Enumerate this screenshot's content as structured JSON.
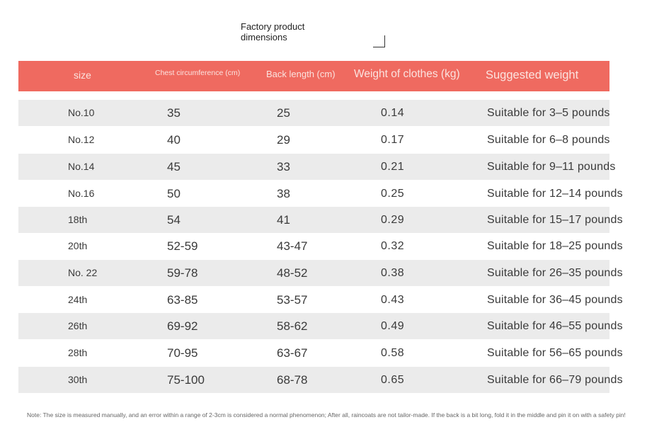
{
  "title": "Factory product dimensions",
  "colors": {
    "header_bg": "#ef6a60",
    "row_shade": "#ebebeb"
  },
  "header": {
    "size": "size",
    "chest": "Chest circumference (cm)",
    "back": "Back length (cm)",
    "weight": "Weight of clothes (kg)",
    "suggested": "Suggested weight"
  },
  "rows": [
    {
      "size": "No.10",
      "chest": "35",
      "back": "25",
      "weight": "0.14",
      "suggested": "Suitable for 3–5 pounds"
    },
    {
      "size": "No.12",
      "chest": "40",
      "back": "29",
      "weight": "0.17",
      "suggested": "Suitable for 6–8 pounds"
    },
    {
      "size": "No.14",
      "chest": "45",
      "back": "33",
      "weight": "0.21",
      "suggested": "Suitable for 9–11 pounds"
    },
    {
      "size": "No.16",
      "chest": "50",
      "back": "38",
      "weight": "0.25",
      "suggested": "Suitable for 12–14 pounds"
    },
    {
      "size": "18th",
      "chest": "54",
      "back": "41",
      "weight": "0.29",
      "suggested": "Suitable for 15–17 pounds"
    },
    {
      "size": "20th",
      "chest": "52-59",
      "back": "43-47",
      "weight": "0.32",
      "suggested": "Suitable for 18–25 pounds"
    },
    {
      "size": "No. 22",
      "chest": "59-78",
      "back": "48-52",
      "weight": "0.38",
      "suggested": "Suitable for 26–35 pounds"
    },
    {
      "size": "24th",
      "chest": "63-85",
      "back": "53-57",
      "weight": "0.43",
      "suggested": "Suitable for 36–45 pounds"
    },
    {
      "size": "26th",
      "chest": "69-92",
      "back": "58-62",
      "weight": "0.49",
      "suggested": "Suitable for 46–55 pounds"
    },
    {
      "size": "28th",
      "chest": "70-95",
      "back": "63-67",
      "weight": "0.58",
      "suggested": "Suitable for 56–65 pounds"
    },
    {
      "size": "30th",
      "chest": "75-100",
      "back": "68-78",
      "weight": "0.65",
      "suggested": "Suitable for 66–79 pounds"
    }
  ],
  "note": "Note: The size is measured manually, and an error within a range of 2-3cm is considered a normal phenomenon; After all, raincoats are not tailor-made. If the back is a bit long, fold it in the middle and pin it on with a safety pin!"
}
